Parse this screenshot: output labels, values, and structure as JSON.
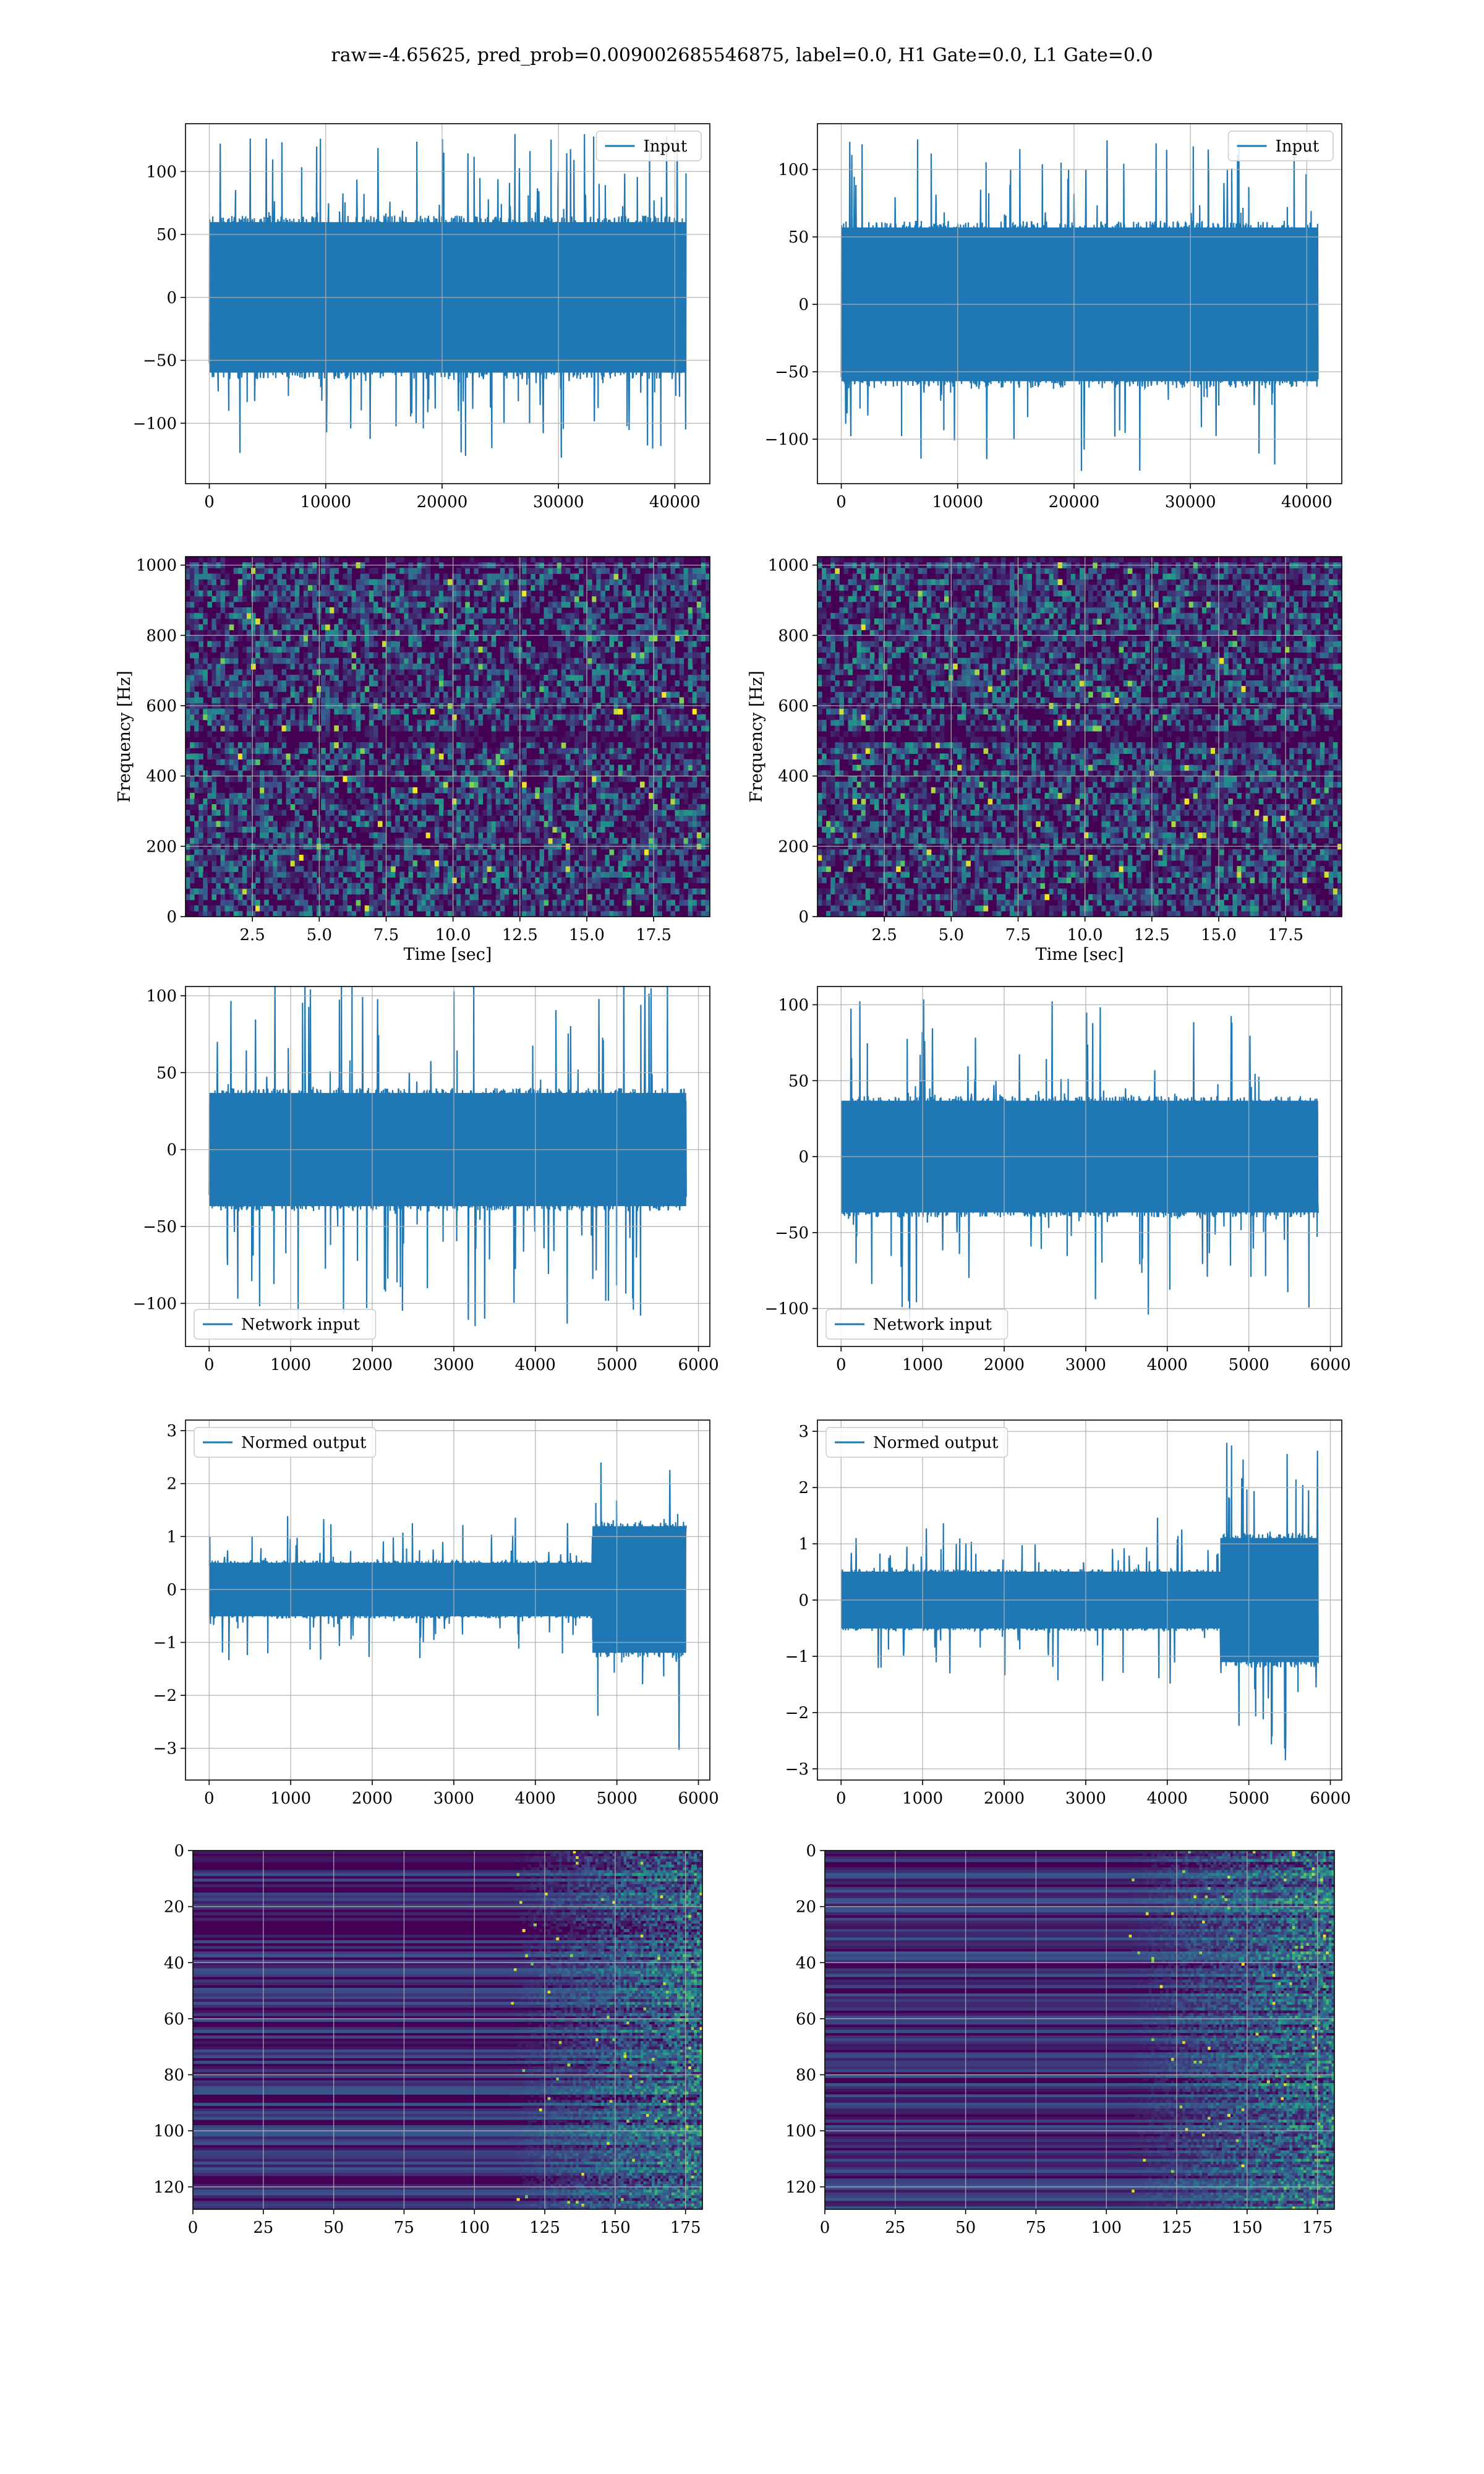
{
  "suptitle": "raw=-4.65625, pred_prob=0.009002685546875, label=0.0, H1 Gate=0.0, L1 Gate=0.0",
  "colors": {
    "series": "#1f77b4",
    "grid": "#b0b0b0",
    "viridis_dark": "#440154"
  },
  "chart_data": [
    {
      "type": "line",
      "row": 1,
      "col": 1,
      "legend": {
        "label": "Input",
        "placement": "upper right"
      },
      "x_range": [
        0,
        40960
      ],
      "xlim": [
        -2048,
        43008
      ],
      "ylim": [
        -148,
        138
      ],
      "envelope": {
        "core": 65,
        "peak": 130
      },
      "grid": true,
      "xticks": [
        0,
        10000,
        20000,
        30000,
        40000
      ],
      "xtick_labels": [
        "0",
        "10000",
        "20000",
        "30000",
        "40000"
      ],
      "yticks": [
        -100,
        -50,
        0,
        50,
        100
      ],
      "ytick_labels": [
        "−100",
        "−50",
        "0",
        "50",
        "100"
      ],
      "seed": 11
    },
    {
      "type": "line",
      "row": 1,
      "col": 2,
      "legend": {
        "label": "Input",
        "placement": "upper right"
      },
      "x_range": [
        0,
        40960
      ],
      "xlim": [
        -2048,
        43008
      ],
      "ylim": [
        -133,
        134
      ],
      "envelope": {
        "core": 62,
        "peak": 124
      },
      "grid": true,
      "xticks": [
        0,
        10000,
        20000,
        30000,
        40000
      ],
      "xtick_labels": [
        "0",
        "10000",
        "20000",
        "30000",
        "40000"
      ],
      "yticks": [
        -100,
        -50,
        0,
        50,
        100
      ],
      "ytick_labels": [
        "−100",
        "−50",
        "0",
        "50",
        "100"
      ],
      "seed": 23
    },
    {
      "type": "heatmap",
      "row": 2,
      "col": 1,
      "kind": "spectrogram",
      "xlim": [
        0,
        19.6
      ],
      "ylim": [
        0,
        1024
      ],
      "xlabel": "Time [sec]",
      "ylabel": "Frequency [Hz]",
      "xticks": [
        2.5,
        5.0,
        7.5,
        10.0,
        12.5,
        15.0,
        17.5
      ],
      "xtick_labels": [
        "2.5",
        "5.0",
        "7.5",
        "10.0",
        "12.5",
        "15.0",
        "17.5"
      ],
      "yticks": [
        0,
        200,
        400,
        600,
        800,
        1000
      ],
      "ytick_labels": [
        "0",
        "200",
        "400",
        "600",
        "800",
        "1000"
      ],
      "dark_band_hz": [
        490,
        525
      ],
      "grid": true,
      "seed": 31
    },
    {
      "type": "heatmap",
      "row": 2,
      "col": 2,
      "kind": "spectrogram",
      "xlim": [
        0,
        19.6
      ],
      "ylim": [
        0,
        1024
      ],
      "xlabel": "Time [sec]",
      "ylabel": "Frequency [Hz]",
      "xticks": [
        2.5,
        5.0,
        7.5,
        10.0,
        12.5,
        15.0,
        17.5
      ],
      "xtick_labels": [
        "2.5",
        "5.0",
        "7.5",
        "10.0",
        "12.5",
        "15.0",
        "17.5"
      ],
      "yticks": [
        0,
        200,
        400,
        600,
        800,
        1000
      ],
      "ytick_labels": [
        "0",
        "200",
        "400",
        "600",
        "800",
        "1000"
      ],
      "dark_band_hz": [
        490,
        525
      ],
      "grid": true,
      "seed": 47
    },
    {
      "type": "line",
      "row": 3,
      "col": 1,
      "legend": {
        "label": "Network input",
        "placement": "lower left"
      },
      "x_range": [
        0,
        5850
      ],
      "xlim": [
        -290,
        6140
      ],
      "ylim": [
        -128,
        106
      ],
      "envelope": {
        "core": 40,
        "peak": 115
      },
      "grid": true,
      "xticks": [
        0,
        1000,
        2000,
        3000,
        4000,
        5000,
        6000
      ],
      "xtick_labels": [
        "0",
        "1000",
        "2000",
        "3000",
        "4000",
        "5000",
        "6000"
      ],
      "yticks": [
        -100,
        -50,
        0,
        50,
        100
      ],
      "ytick_labels": [
        "−100",
        "−50",
        "0",
        "50",
        "100"
      ],
      "seed": 53
    },
    {
      "type": "line",
      "row": 3,
      "col": 2,
      "legend": {
        "label": "Network input",
        "placement": "lower left"
      },
      "x_range": [
        0,
        5850
      ],
      "xlim": [
        -290,
        6140
      ],
      "ylim": [
        -125,
        112
      ],
      "envelope": {
        "core": 40,
        "peak": 108
      },
      "grid": true,
      "xticks": [
        0,
        1000,
        2000,
        3000,
        4000,
        5000,
        6000
      ],
      "xtick_labels": [
        "0",
        "1000",
        "2000",
        "3000",
        "4000",
        "5000",
        "6000"
      ],
      "yticks": [
        -100,
        -50,
        0,
        50,
        100
      ],
      "ytick_labels": [
        "−100",
        "−50",
        "0",
        "50",
        "100"
      ],
      "seed": 67
    },
    {
      "type": "line",
      "row": 4,
      "col": 1,
      "legend": {
        "label": "Normed output",
        "placement": "upper left"
      },
      "x_range": [
        0,
        5850
      ],
      "xlim": [
        -290,
        6140
      ],
      "ylim": [
        -3.6,
        3.2
      ],
      "envelope": {
        "core": 0.55,
        "peak": 1.4,
        "burst_start": 4700,
        "burst_core": 1.3,
        "burst_peak": 3.2
      },
      "grid": true,
      "xticks": [
        0,
        1000,
        2000,
        3000,
        4000,
        5000,
        6000
      ],
      "xtick_labels": [
        "0",
        "1000",
        "2000",
        "3000",
        "4000",
        "5000",
        "6000"
      ],
      "yticks": [
        -3,
        -2,
        -1,
        0,
        1,
        2,
        3
      ],
      "ytick_labels": [
        "−3",
        "−2",
        "−1",
        "0",
        "1",
        "2",
        "3"
      ],
      "seed": 71
    },
    {
      "type": "line",
      "row": 4,
      "col": 2,
      "legend": {
        "label": "Normed output",
        "placement": "upper left"
      },
      "x_range": [
        0,
        5850
      ],
      "xlim": [
        -290,
        6140
      ],
      "ylim": [
        -3.2,
        3.2
      ],
      "envelope": {
        "core": 0.55,
        "peak": 1.5,
        "burst_start": 4650,
        "burst_core": 1.2,
        "burst_peak": 2.9
      },
      "grid": true,
      "xticks": [
        0,
        1000,
        2000,
        3000,
        4000,
        5000,
        6000
      ],
      "xtick_labels": [
        "0",
        "1000",
        "2000",
        "3000",
        "4000",
        "5000",
        "6000"
      ],
      "yticks": [
        -3,
        -2,
        -1,
        0,
        1,
        2,
        3
      ],
      "ytick_labels": [
        "−3",
        "−2",
        "−1",
        "0",
        "1",
        "2",
        "3"
      ],
      "seed": 83
    },
    {
      "type": "heatmap",
      "row": 5,
      "col": 1,
      "kind": "feature_map",
      "xlim": [
        0,
        181
      ],
      "ylim": [
        128,
        0
      ],
      "rows": 128,
      "cols": 181,
      "activity_start": 125,
      "xticks": [
        0,
        25,
        50,
        75,
        100,
        125,
        150,
        175
      ],
      "xtick_labels": [
        "0",
        "25",
        "50",
        "75",
        "100",
        "125",
        "150",
        "175"
      ],
      "yticks": [
        0,
        20,
        40,
        60,
        80,
        100,
        120
      ],
      "ytick_labels": [
        "0",
        "20",
        "40",
        "60",
        "80",
        "100",
        "120"
      ],
      "grid": true,
      "seed": 97
    },
    {
      "type": "heatmap",
      "row": 5,
      "col": 2,
      "kind": "feature_map",
      "xlim": [
        0,
        181
      ],
      "ylim": [
        128,
        0
      ],
      "rows": 128,
      "cols": 181,
      "activity_start": 120,
      "xticks": [
        0,
        25,
        50,
        75,
        100,
        125,
        150,
        175
      ],
      "xtick_labels": [
        "0",
        "25",
        "50",
        "75",
        "100",
        "125",
        "150",
        "175"
      ],
      "yticks": [
        0,
        20,
        40,
        60,
        80,
        100,
        120
      ],
      "ytick_labels": [
        "0",
        "20",
        "40",
        "60",
        "80",
        "100",
        "120"
      ],
      "grid": true,
      "seed": 109
    }
  ]
}
